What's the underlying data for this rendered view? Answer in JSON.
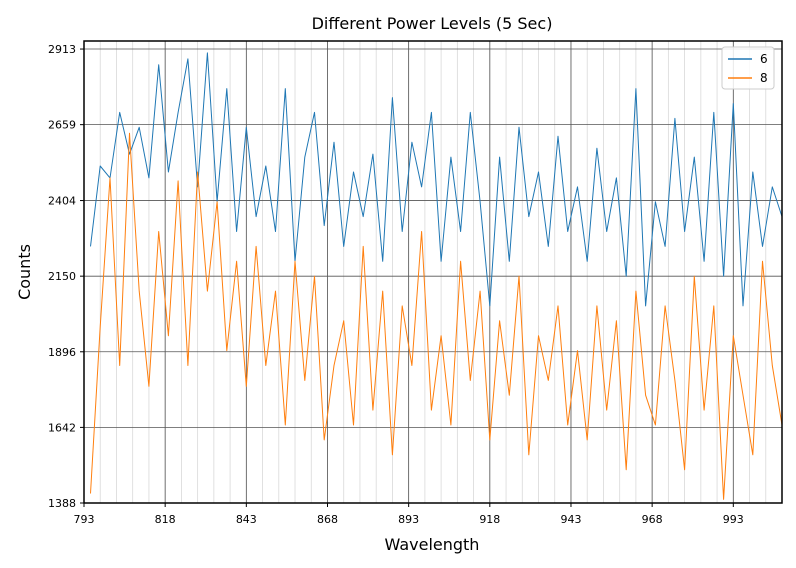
{
  "chart_data": {
    "type": "line",
    "title": "Different Power Levels (5 Sec)",
    "xlabel": "Wavelength",
    "ylabel": "Counts",
    "xlim": [
      793,
      1008
    ],
    "ylim": [
      1388,
      2940
    ],
    "x_ticks": [
      793,
      818,
      843,
      868,
      893,
      918,
      943,
      968,
      993
    ],
    "y_ticks": [
      1388,
      1642,
      1896,
      2150,
      2404,
      2659,
      2913
    ],
    "grid": true,
    "legend_position": "top-right",
    "series": [
      {
        "name": "6",
        "color": "#1f77b4",
        "x": [
          795,
          798,
          801,
          804,
          807,
          810,
          813,
          816,
          819,
          822,
          825,
          828,
          831,
          834,
          837,
          840,
          843,
          846,
          849,
          852,
          855,
          858,
          861,
          864,
          867,
          870,
          873,
          876,
          879,
          882,
          885,
          888,
          891,
          894,
          897,
          900,
          903,
          906,
          909,
          912,
          915,
          918,
          921,
          924,
          927,
          930,
          933,
          936,
          939,
          942,
          945,
          948,
          951,
          954,
          957,
          960,
          963,
          966,
          969,
          972,
          975,
          978,
          981,
          984,
          987,
          990,
          993,
          996,
          999,
          1002,
          1005,
          1008
        ],
        "values": [
          2250,
          2520,
          2480,
          2700,
          2560,
          2650,
          2480,
          2860,
          2500,
          2700,
          2880,
          2450,
          2900,
          2400,
          2780,
          2300,
          2650,
          2350,
          2520,
          2300,
          2780,
          2200,
          2550,
          2700,
          2320,
          2600,
          2250,
          2500,
          2350,
          2560,
          2200,
          2750,
          2300,
          2600,
          2450,
          2700,
          2200,
          2550,
          2300,
          2700,
          2400,
          2050,
          2550,
          2200,
          2650,
          2350,
          2500,
          2250,
          2620,
          2300,
          2450,
          2200,
          2580,
          2300,
          2480,
          2150,
          2780,
          2050,
          2400,
          2250,
          2680,
          2300,
          2550,
          2200,
          2700,
          2150,
          2730,
          2050,
          2500,
          2250,
          2450,
          2350
        ]
      },
      {
        "name": "8",
        "color": "#ff7f0e",
        "x": [
          795,
          798,
          801,
          804,
          807,
          810,
          813,
          816,
          819,
          822,
          825,
          828,
          831,
          834,
          837,
          840,
          843,
          846,
          849,
          852,
          855,
          858,
          861,
          864,
          867,
          870,
          873,
          876,
          879,
          882,
          885,
          888,
          891,
          894,
          897,
          900,
          903,
          906,
          909,
          912,
          915,
          918,
          921,
          924,
          927,
          930,
          933,
          936,
          939,
          942,
          945,
          948,
          951,
          954,
          957,
          960,
          963,
          966,
          969,
          972,
          975,
          978,
          981,
          984,
          987,
          990,
          993,
          996,
          999,
          1002,
          1005,
          1008
        ],
        "values": [
          1420,
          1980,
          2480,
          1850,
          2630,
          2100,
          1780,
          2300,
          1950,
          2470,
          1850,
          2500,
          2100,
          2400,
          1900,
          2200,
          1780,
          2250,
          1850,
          2100,
          1650,
          2200,
          1800,
          2150,
          1600,
          1850,
          2000,
          1650,
          2250,
          1700,
          2100,
          1550,
          2050,
          1850,
          2300,
          1700,
          1950,
          1650,
          2200,
          1800,
          2100,
          1600,
          2000,
          1750,
          2150,
          1550,
          1950,
          1800,
          2050,
          1650,
          1900,
          1600,
          2050,
          1700,
          2000,
          1500,
          2100,
          1750,
          1650,
          2050,
          1800,
          1500,
          2150,
          1700,
          2050,
          1400,
          1950,
          1750,
          1550,
          2200,
          1850,
          1650
        ]
      }
    ]
  }
}
